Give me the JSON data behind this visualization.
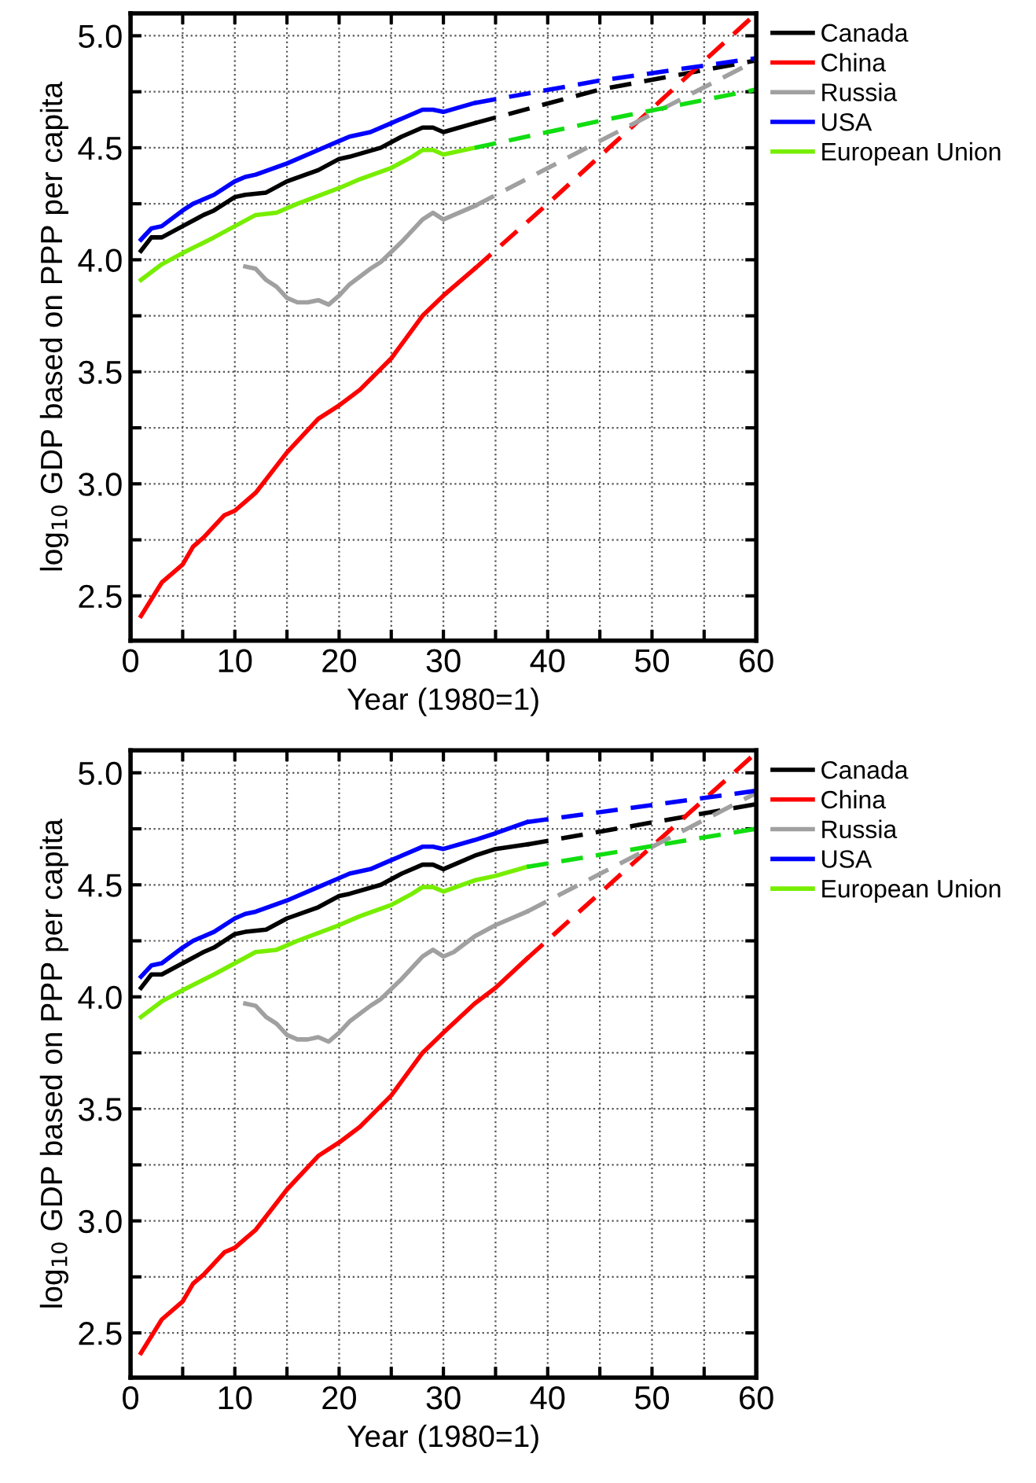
{
  "chart_data": [
    {
      "type": "line",
      "xlabel": "Year (1980=1)",
      "ylabel": "log$_{10}$ GDP based on PPP per capita",
      "xlim": [
        0,
        60
      ],
      "ylim": [
        2.3,
        5.1
      ],
      "xticks": [
        0,
        {
          "value": 5,
          "label": null
        },
        10,
        {
          "value": 15,
          "label": null
        },
        20,
        {
          "value": 25,
          "label": null
        },
        30,
        {
          "value": 35,
          "label": null
        },
        40,
        {
          "value": 45,
          "label": null
        },
        50,
        {
          "value": 55,
          "label": null
        },
        60
      ],
      "yticks": [
        2.5,
        {
          "value": 2.75,
          "label": null
        },
        {
          "value": 3,
          "label": "3.0"
        },
        {
          "value": 3.25,
          "label": null
        },
        3.5,
        {
          "value": 3.75,
          "label": null
        },
        {
          "value": 4,
          "label": "4.0"
        },
        {
          "value": 4.25,
          "label": null
        },
        4.5,
        {
          "value": 4.75,
          "label": null
        },
        {
          "value": 5,
          "label": "5.0"
        }
      ],
      "grid": true,
      "legend": "top right",
      "series": [
        {
          "name": "Canada",
          "color": "#000000",
          "line_style": "solid",
          "x": [
            1,
            2,
            3,
            5,
            7,
            8,
            10,
            11,
            13,
            15,
            18,
            20,
            21,
            24,
            26,
            28,
            29,
            30,
            33
          ],
          "values": [
            4.04,
            4.1,
            4.1,
            4.15,
            4.2,
            4.22,
            4.28,
            4.29,
            4.3,
            4.35,
            4.4,
            4.45,
            4.46,
            4.5,
            4.55,
            4.59,
            4.59,
            4.57,
            4.61
          ]
        },
        {
          "name": "China",
          "color": "#ff0000",
          "line_style": "solid",
          "x": [
            1,
            3,
            5,
            6,
            7,
            9,
            10,
            11,
            12,
            15,
            18,
            20,
            22,
            25,
            28,
            30,
            33
          ],
          "values": [
            2.41,
            2.56,
            2.64,
            2.72,
            2.76,
            2.86,
            2.88,
            2.92,
            2.96,
            3.14,
            3.29,
            3.35,
            3.42,
            3.56,
            3.75,
            3.84,
            3.96
          ]
        },
        {
          "name": "Russia",
          "color": "#a0a0a0",
          "line_style": "solid",
          "x": [
            11,
            12,
            13,
            14,
            15,
            16,
            17,
            18,
            19,
            20,
            21,
            23,
            24,
            26,
            28,
            29,
            30,
            31,
            33
          ],
          "values": [
            3.97,
            3.96,
            3.91,
            3.88,
            3.83,
            3.81,
            3.81,
            3.82,
            3.8,
            3.84,
            3.89,
            3.96,
            3.99,
            4.08,
            4.18,
            4.21,
            4.18,
            4.2,
            4.24
          ]
        },
        {
          "name": "USA",
          "color": "#0000ff",
          "line_style": "solid",
          "x": [
            1,
            2,
            3,
            5,
            6,
            8,
            10,
            11,
            12,
            15,
            18,
            20,
            21,
            23,
            25,
            28,
            29,
            30,
            33
          ],
          "values": [
            4.09,
            4.14,
            4.15,
            4.22,
            4.25,
            4.29,
            4.35,
            4.37,
            4.38,
            4.43,
            4.49,
            4.53,
            4.55,
            4.57,
            4.61,
            4.67,
            4.67,
            4.66,
            4.7
          ]
        },
        {
          "name": "European Union",
          "color": "#77ee00",
          "line_style": "solid",
          "x": [
            1,
            3,
            5,
            8,
            10,
            12,
            14,
            16,
            20,
            22,
            25,
            27,
            28,
            29,
            30,
            33
          ],
          "values": [
            3.91,
            3.98,
            4.03,
            4.1,
            4.15,
            4.2,
            4.21,
            4.25,
            4.32,
            4.36,
            4.41,
            4.46,
            4.49,
            4.49,
            4.47,
            4.5
          ]
        },
        {
          "color": "#000000",
          "line_style": "dashed",
          "x": [
            33,
            45,
            60
          ],
          "values": [
            4.61,
            4.76,
            4.89
          ]
        },
        {
          "color": "#ff0000",
          "line_style": "dashed",
          "x": [
            33,
            40,
            60
          ],
          "values": [
            3.96,
            4.25,
            5.1
          ]
        },
        {
          "color": "#a0a0a0",
          "line_style": "dashed",
          "x": [
            33,
            45,
            60
          ],
          "values": [
            4.24,
            4.53,
            4.89
          ]
        },
        {
          "color": "#0000ff",
          "line_style": "dashed",
          "x": [
            33,
            45,
            60
          ],
          "values": [
            4.7,
            4.8,
            4.9
          ]
        },
        {
          "color": "#11dd11",
          "line_style": "dashed",
          "x": [
            33,
            45,
            60
          ],
          "values": [
            4.5,
            4.62,
            4.76
          ]
        }
      ]
    },
    {
      "type": "line",
      "xlabel": "Year (1980=1)",
      "ylabel": "log$_{10}$ GDP based on PPP per capita",
      "xlim": [
        0,
        60
      ],
      "ylim": [
        2.3,
        5.1
      ],
      "xticks": [
        0,
        {
          "value": 5,
          "label": null
        },
        10,
        {
          "value": 15,
          "label": null
        },
        20,
        {
          "value": 25,
          "label": null
        },
        30,
        {
          "value": 35,
          "label": null
        },
        40,
        {
          "value": 45,
          "label": null
        },
        50,
        {
          "value": 55,
          "label": null
        },
        60
      ],
      "yticks": [
        2.5,
        {
          "value": 2.75,
          "label": null
        },
        {
          "value": 3,
          "label": "3.0"
        },
        {
          "value": 3.25,
          "label": null
        },
        3.5,
        {
          "value": 3.75,
          "label": null
        },
        {
          "value": 4,
          "label": "4.0"
        },
        {
          "value": 4.25,
          "label": null
        },
        4.5,
        {
          "value": 4.75,
          "label": null
        },
        {
          "value": 5,
          "label": "5.0"
        }
      ],
      "grid": true,
      "legend": "top right",
      "series": [
        {
          "name": "Canada",
          "color": "#000000",
          "line_style": "solid",
          "x": [
            1,
            2,
            3,
            5,
            7,
            8,
            10,
            11,
            13,
            15,
            18,
            20,
            21,
            24,
            26,
            28,
            29,
            30,
            33,
            35,
            38
          ],
          "values": [
            4.04,
            4.1,
            4.1,
            4.15,
            4.2,
            4.22,
            4.28,
            4.29,
            4.3,
            4.35,
            4.4,
            4.45,
            4.46,
            4.5,
            4.55,
            4.59,
            4.59,
            4.57,
            4.63,
            4.66,
            4.68
          ]
        },
        {
          "name": "China",
          "color": "#ff0000",
          "line_style": "solid",
          "x": [
            1,
            3,
            5,
            6,
            7,
            9,
            10,
            11,
            12,
            15,
            18,
            20,
            22,
            25,
            28,
            30,
            33,
            35,
            38
          ],
          "values": [
            2.41,
            2.56,
            2.64,
            2.72,
            2.76,
            2.86,
            2.88,
            2.92,
            2.96,
            3.14,
            3.29,
            3.35,
            3.42,
            3.56,
            3.75,
            3.84,
            3.97,
            4.04,
            4.17
          ]
        },
        {
          "name": "Russia",
          "color": "#a0a0a0",
          "line_style": "solid",
          "x": [
            11,
            12,
            13,
            14,
            15,
            16,
            17,
            18,
            19,
            20,
            21,
            23,
            24,
            26,
            28,
            29,
            30,
            31,
            33,
            35,
            38
          ],
          "values": [
            3.97,
            3.96,
            3.91,
            3.88,
            3.83,
            3.81,
            3.81,
            3.82,
            3.8,
            3.84,
            3.89,
            3.96,
            3.99,
            4.08,
            4.18,
            4.21,
            4.18,
            4.2,
            4.27,
            4.32,
            4.38
          ]
        },
        {
          "name": "USA",
          "color": "#0000ff",
          "line_style": "solid",
          "x": [
            1,
            2,
            3,
            5,
            6,
            8,
            10,
            11,
            12,
            15,
            18,
            20,
            21,
            23,
            25,
            28,
            29,
            30,
            33,
            35,
            38
          ],
          "values": [
            4.09,
            4.14,
            4.15,
            4.22,
            4.25,
            4.29,
            4.35,
            4.37,
            4.38,
            4.43,
            4.49,
            4.53,
            4.55,
            4.57,
            4.61,
            4.67,
            4.67,
            4.66,
            4.7,
            4.73,
            4.78
          ]
        },
        {
          "name": "European Union",
          "color": "#77ee00",
          "line_style": "solid",
          "x": [
            1,
            3,
            5,
            8,
            10,
            12,
            14,
            16,
            20,
            22,
            25,
            27,
            28,
            29,
            30,
            33,
            35,
            38
          ],
          "values": [
            3.91,
            3.98,
            4.03,
            4.1,
            4.15,
            4.2,
            4.21,
            4.25,
            4.32,
            4.36,
            4.41,
            4.46,
            4.49,
            4.49,
            4.47,
            4.52,
            4.54,
            4.58
          ]
        },
        {
          "color": "#000000",
          "line_style": "dashed",
          "x": [
            38,
            60
          ],
          "values": [
            4.68,
            4.86
          ]
        },
        {
          "color": "#ff0000",
          "line_style": "dashed",
          "x": [
            38,
            60
          ],
          "values": [
            4.17,
            5.09
          ]
        },
        {
          "color": "#a0a0a0",
          "line_style": "dashed",
          "x": [
            38,
            60
          ],
          "values": [
            4.38,
            4.91
          ]
        },
        {
          "color": "#0000ff",
          "line_style": "dashed",
          "x": [
            38,
            60
          ],
          "values": [
            4.78,
            4.92
          ]
        },
        {
          "color": "#11dd11",
          "line_style": "dashed",
          "x": [
            38,
            60
          ],
          "values": [
            4.58,
            4.75
          ]
        }
      ]
    }
  ]
}
